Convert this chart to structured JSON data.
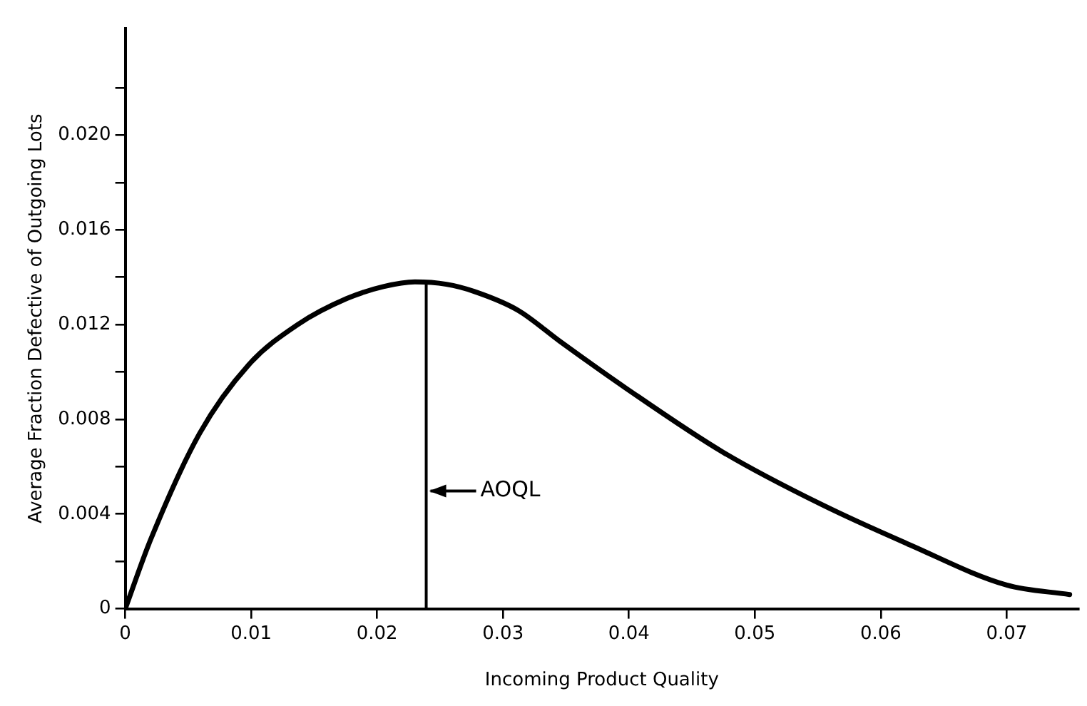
{
  "chart_data": {
    "type": "line",
    "xlabel": "Incoming Product Quality",
    "ylabel": "Average Fraction Defective of Outgoing Lots",
    "x": [
      0,
      0.002,
      0.0059,
      0.0098,
      0.0137,
      0.0176,
      0.0205,
      0.023,
      0.0255,
      0.0277,
      0.0312,
      0.0345,
      0.0398,
      0.0475,
      0.0553,
      0.0623,
      0.07,
      0.075
    ],
    "series": [
      {
        "color": "#000000",
        "values": [
          0,
          0.0029,
          0.0074,
          0.0103,
          0.012,
          0.0131,
          0.0136,
          0.0138,
          0.0137,
          0.0134,
          0.0126,
          0.0113,
          0.0093,
          0.0066,
          0.0044,
          0.0027,
          0.001,
          0.0006
        ]
      }
    ],
    "xlim": [
      0,
      0.0757
    ],
    "xticks": [
      0,
      0.01,
      0.02,
      0.03,
      0.04,
      0.05,
      0.06,
      0.07
    ],
    "ylim": [
      0,
      0.0245
    ],
    "yticks": [
      0,
      {
        "value": 0.002,
        "label": null
      },
      0.004,
      {
        "value": 0.006,
        "label": null
      },
      0.008,
      {
        "value": 0.01,
        "label": null
      },
      0.012,
      {
        "value": 0.014,
        "label": null
      },
      0.016,
      {
        "value": 0.018,
        "label": null
      },
      {
        "value": 0.02,
        "label": "0.020"
      },
      {
        "value": 0.022,
        "label": null
      }
    ],
    "ref_lines": [
      {
        "axis": "x",
        "value": 0.0239,
        "label": "AOQL",
        "color": "#000000"
      }
    ],
    "grid": false,
    "legend": false,
    "marker": "none",
    "line_style": "solid"
  }
}
